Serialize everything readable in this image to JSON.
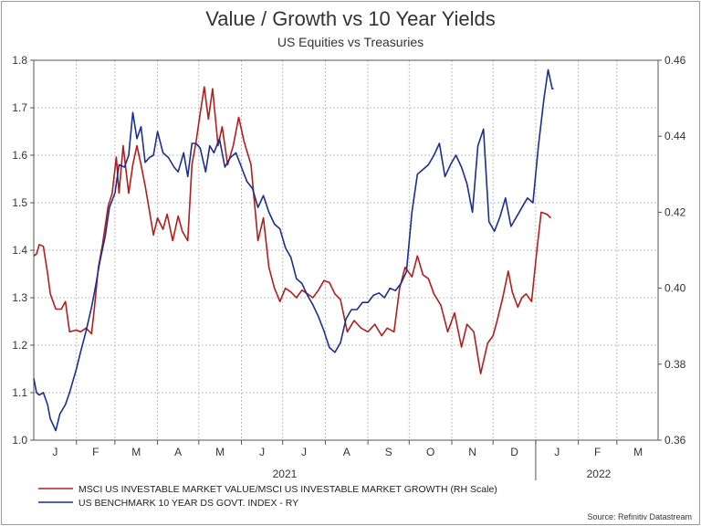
{
  "chart_data": {
    "type": "line",
    "title": "Value / Growth vs 10 Year Yields",
    "subtitle": "US Equities vs Treasuries",
    "source": "Source: Refinitiv Datastream",
    "x_months": [
      "J",
      "F",
      "M",
      "A",
      "M",
      "J",
      "J",
      "A",
      "S",
      "O",
      "N",
      "D",
      "J",
      "F",
      "M"
    ],
    "x_years": [
      "2021",
      "2022"
    ],
    "x_range": [
      "2021-01-01",
      "2022-03-31"
    ],
    "left_axis": {
      "ylim": [
        1.0,
        1.8
      ],
      "ticks": [
        "1.0",
        "1.1",
        "1.2",
        "1.3",
        "1.4",
        "1.5",
        "1.6",
        "1.7",
        "1.8"
      ]
    },
    "right_axis": {
      "ylim": [
        0.36,
        0.46
      ],
      "ticks": [
        "0.36",
        "0.38",
        "0.40",
        "0.42",
        "0.44",
        "0.46"
      ]
    },
    "grid": true,
    "legend_position": "bottom-left",
    "series": [
      {
        "name": "MSCI US INVESTABLE MARKET VALUE/MSCI US INVESTABLE MARKET GROWTH (RH Scale)",
        "axis": "right",
        "color": "#b01e1e",
        "points": [
          [
            "2021-01-01",
            0.4085
          ],
          [
            "2021-01-03",
            0.409
          ],
          [
            "2021-01-05",
            0.4115
          ],
          [
            "2021-01-08",
            0.411
          ],
          [
            "2021-01-11",
            0.404
          ],
          [
            "2021-01-13",
            0.3985
          ],
          [
            "2021-01-17",
            0.3945
          ],
          [
            "2021-01-21",
            0.3945
          ],
          [
            "2021-01-24",
            0.3965
          ],
          [
            "2021-01-27",
            0.3885
          ],
          [
            "2021-02-01",
            0.389
          ],
          [
            "2021-02-04",
            0.3885
          ],
          [
            "2021-02-08",
            0.3895
          ],
          [
            "2021-02-12",
            0.388
          ],
          [
            "2021-02-14",
            0.3945
          ],
          [
            "2021-02-17",
            0.4055
          ],
          [
            "2021-02-20",
            0.4115
          ],
          [
            "2021-02-24",
            0.4215
          ],
          [
            "2021-02-27",
            0.425
          ],
          [
            "2021-03-02",
            0.4345
          ],
          [
            "2021-03-04",
            0.425
          ],
          [
            "2021-03-07",
            0.4375
          ],
          [
            "2021-03-11",
            0.425
          ],
          [
            "2021-03-14",
            0.4325
          ],
          [
            "2021-03-17",
            0.4375
          ],
          [
            "2021-03-20",
            0.4325
          ],
          [
            "2021-03-23",
            0.427
          ],
          [
            "2021-03-26",
            0.4205
          ],
          [
            "2021-03-29",
            0.414
          ],
          [
            "2021-04-01",
            0.4185
          ],
          [
            "2021-04-05",
            0.4155
          ],
          [
            "2021-04-08",
            0.4195
          ],
          [
            "2021-04-12",
            0.4125
          ],
          [
            "2021-04-16",
            0.419
          ],
          [
            "2021-04-19",
            0.415
          ],
          [
            "2021-04-23",
            0.4125
          ],
          [
            "2021-04-26",
            0.4325
          ],
          [
            "2021-04-29",
            0.4385
          ],
          [
            "2021-05-02",
            0.446
          ],
          [
            "2021-05-05",
            0.453
          ],
          [
            "2021-05-08",
            0.4445
          ],
          [
            "2021-05-11",
            0.4525
          ],
          [
            "2021-05-15",
            0.4375
          ],
          [
            "2021-05-18",
            0.4425
          ],
          [
            "2021-05-22",
            0.4325
          ],
          [
            "2021-05-26",
            0.4375
          ],
          [
            "2021-05-30",
            0.445
          ],
          [
            "2021-06-03",
            0.4385
          ],
          [
            "2021-06-08",
            0.4325
          ],
          [
            "2021-06-13",
            0.4125
          ],
          [
            "2021-06-17",
            0.4185
          ],
          [
            "2021-06-21",
            0.4055
          ],
          [
            "2021-06-25",
            0.4
          ],
          [
            "2021-06-29",
            0.3965
          ],
          [
            "2021-07-03",
            0.4
          ],
          [
            "2021-07-07",
            0.399
          ],
          [
            "2021-07-11",
            0.3975
          ],
          [
            "2021-07-15",
            0.3995
          ],
          [
            "2021-07-19",
            0.3985
          ],
          [
            "2021-07-23",
            0.3975
          ],
          [
            "2021-07-27",
            0.3995
          ],
          [
            "2021-07-31",
            0.402
          ],
          [
            "2021-08-04",
            0.4015
          ],
          [
            "2021-08-08",
            0.3985
          ],
          [
            "2021-08-12",
            0.397
          ],
          [
            "2021-08-17",
            0.3885
          ],
          [
            "2021-08-22",
            0.3915
          ],
          [
            "2021-08-27",
            0.3895
          ],
          [
            "2021-09-01",
            0.3885
          ],
          [
            "2021-09-06",
            0.3905
          ],
          [
            "2021-09-11",
            0.3875
          ],
          [
            "2021-09-15",
            0.3895
          ],
          [
            "2021-09-20",
            0.3885
          ],
          [
            "2021-09-24",
            0.4
          ],
          [
            "2021-09-28",
            0.4055
          ],
          [
            "2021-10-03",
            0.403
          ],
          [
            "2021-10-07",
            0.4085
          ],
          [
            "2021-10-11",
            0.4035
          ],
          [
            "2021-10-15",
            0.4025
          ],
          [
            "2021-10-19",
            0.3985
          ],
          [
            "2021-10-24",
            0.3955
          ],
          [
            "2021-10-29",
            0.3885
          ],
          [
            "2021-11-03",
            0.3935
          ],
          [
            "2021-11-08",
            0.3845
          ],
          [
            "2021-11-12",
            0.3905
          ],
          [
            "2021-11-17",
            0.3885
          ],
          [
            "2021-11-22",
            0.3775
          ],
          [
            "2021-11-27",
            0.3855
          ],
          [
            "2021-12-01",
            0.3875
          ],
          [
            "2021-12-04",
            0.3915
          ],
          [
            "2021-12-08",
            0.3975
          ],
          [
            "2021-12-12",
            0.4045
          ],
          [
            "2021-12-15",
            0.399
          ],
          [
            "2021-12-19",
            0.395
          ],
          [
            "2021-12-22",
            0.3975
          ],
          [
            "2021-12-25",
            0.3985
          ],
          [
            "2021-12-29",
            0.3965
          ],
          [
            "2022-01-02",
            0.4105
          ],
          [
            "2022-01-05",
            0.42
          ],
          [
            "2022-01-09",
            0.4195
          ],
          [
            "2022-01-12",
            0.4185
          ]
        ]
      },
      {
        "name": "US BENCHMARK 10 YEAR DS GOVT. INDEX - RY",
        "axis": "left",
        "color": "#1c2e8f",
        "points": [
          [
            "2021-01-01",
            1.13
          ],
          [
            "2021-01-03",
            1.1
          ],
          [
            "2021-01-05",
            1.095
          ],
          [
            "2021-01-08",
            1.1
          ],
          [
            "2021-01-11",
            1.075
          ],
          [
            "2021-01-13",
            1.045
          ],
          [
            "2021-01-17",
            1.02
          ],
          [
            "2021-01-20",
            1.055
          ],
          [
            "2021-01-24",
            1.075
          ],
          [
            "2021-01-27",
            1.1
          ],
          [
            "2021-02-01",
            1.15
          ],
          [
            "2021-02-04",
            1.185
          ],
          [
            "2021-02-08",
            1.23
          ],
          [
            "2021-02-12",
            1.28
          ],
          [
            "2021-02-15",
            1.325
          ],
          [
            "2021-02-18",
            1.375
          ],
          [
            "2021-02-22",
            1.43
          ],
          [
            "2021-02-25",
            1.49
          ],
          [
            "2021-03-01",
            1.52
          ],
          [
            "2021-03-04",
            1.58
          ],
          [
            "2021-03-08",
            1.575
          ],
          [
            "2021-03-11",
            1.6
          ],
          [
            "2021-03-14",
            1.69
          ],
          [
            "2021-03-17",
            1.635
          ],
          [
            "2021-03-20",
            1.66
          ],
          [
            "2021-03-23",
            1.585
          ],
          [
            "2021-03-26",
            1.595
          ],
          [
            "2021-03-29",
            1.6
          ],
          [
            "2021-04-01",
            1.65
          ],
          [
            "2021-04-05",
            1.605
          ],
          [
            "2021-04-09",
            1.595
          ],
          [
            "2021-04-13",
            1.575
          ],
          [
            "2021-04-16",
            1.565
          ],
          [
            "2021-04-20",
            1.605
          ],
          [
            "2021-04-23",
            1.555
          ],
          [
            "2021-04-26",
            1.625
          ],
          [
            "2021-04-29",
            1.625
          ],
          [
            "2021-05-02",
            1.615
          ],
          [
            "2021-05-06",
            1.565
          ],
          [
            "2021-05-09",
            1.62
          ],
          [
            "2021-05-12",
            1.605
          ],
          [
            "2021-05-16",
            1.635
          ],
          [
            "2021-05-20",
            1.575
          ],
          [
            "2021-05-24",
            1.595
          ],
          [
            "2021-05-28",
            1.605
          ],
          [
            "2021-06-01",
            1.575
          ],
          [
            "2021-06-05",
            1.545
          ],
          [
            "2021-06-09",
            1.53
          ],
          [
            "2021-06-13",
            1.49
          ],
          [
            "2021-06-17",
            1.515
          ],
          [
            "2021-06-21",
            1.48
          ],
          [
            "2021-06-25",
            1.455
          ],
          [
            "2021-06-29",
            1.445
          ],
          [
            "2021-07-03",
            1.405
          ],
          [
            "2021-07-07",
            1.385
          ],
          [
            "2021-07-11",
            1.34
          ],
          [
            "2021-07-15",
            1.33
          ],
          [
            "2021-07-19",
            1.305
          ],
          [
            "2021-07-23",
            1.285
          ],
          [
            "2021-07-27",
            1.26
          ],
          [
            "2021-07-31",
            1.23
          ],
          [
            "2021-08-04",
            1.195
          ],
          [
            "2021-08-08",
            1.185
          ],
          [
            "2021-08-12",
            1.205
          ],
          [
            "2021-08-16",
            1.255
          ],
          [
            "2021-08-20",
            1.275
          ],
          [
            "2021-08-24",
            1.275
          ],
          [
            "2021-08-28",
            1.29
          ],
          [
            "2021-09-01",
            1.29
          ],
          [
            "2021-09-05",
            1.305
          ],
          [
            "2021-09-09",
            1.31
          ],
          [
            "2021-09-13",
            1.3
          ],
          [
            "2021-09-17",
            1.32
          ],
          [
            "2021-09-21",
            1.315
          ],
          [
            "2021-09-25",
            1.33
          ],
          [
            "2021-09-29",
            1.355
          ],
          [
            "2021-10-03",
            1.48
          ],
          [
            "2021-10-07",
            1.56
          ],
          [
            "2021-10-11",
            1.57
          ],
          [
            "2021-10-15",
            1.58
          ],
          [
            "2021-10-19",
            1.6
          ],
          [
            "2021-10-23",
            1.625
          ],
          [
            "2021-10-27",
            1.555
          ],
          [
            "2021-10-31",
            1.58
          ],
          [
            "2021-11-04",
            1.6
          ],
          [
            "2021-11-08",
            1.575
          ],
          [
            "2021-11-12",
            1.54
          ],
          [
            "2021-11-16",
            1.48
          ],
          [
            "2021-11-20",
            1.62
          ],
          [
            "2021-11-24",
            1.655
          ],
          [
            "2021-11-28",
            1.46
          ],
          [
            "2021-12-02",
            1.44
          ],
          [
            "2021-12-06",
            1.47
          ],
          [
            "2021-12-10",
            1.51
          ],
          [
            "2021-12-14",
            1.45
          ],
          [
            "2021-12-18",
            1.47
          ],
          [
            "2021-12-22",
            1.49
          ],
          [
            "2021-12-26",
            1.51
          ],
          [
            "2021-12-30",
            1.5
          ],
          [
            "2022-01-03",
            1.62
          ],
          [
            "2022-01-07",
            1.72
          ],
          [
            "2022-01-10",
            1.78
          ],
          [
            "2022-01-13",
            1.74
          ],
          [
            "2022-01-14",
            1.74
          ]
        ]
      }
    ]
  }
}
